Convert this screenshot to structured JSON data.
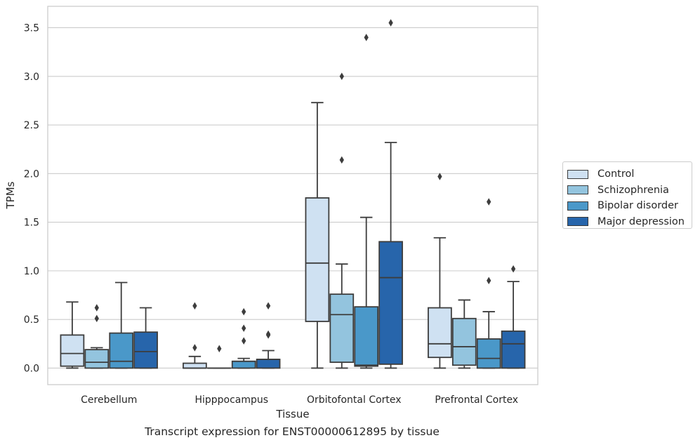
{
  "chart_data": {
    "type": "boxplot",
    "caption": "Transcript expression for ENST00000612895 by tissue",
    "xlabel": "Tissue",
    "ylabel": "TPMs",
    "ylim": [
      -0.17,
      3.72
    ],
    "yticks": [
      0.0,
      0.5,
      1.0,
      1.5,
      2.0,
      2.5,
      3.0,
      3.5
    ],
    "ytick_labels": [
      "0.0",
      "0.5",
      "1.0",
      "1.5",
      "2.0",
      "2.5",
      "3.0",
      "3.5"
    ],
    "grid": "horizontal",
    "legend_position": "right",
    "categories": [
      "Cerebellum",
      "Hipppocampus",
      "Orbitofontal Cortex",
      "Prefrontal Cortex"
    ],
    "series": [
      {
        "name": "Control",
        "color": "#cfe1f2",
        "boxes": [
          {
            "whislo": 0.0,
            "q1": 0.02,
            "med": 0.15,
            "q3": 0.34,
            "whishi": 0.68,
            "fliers": []
          },
          {
            "whislo": 0.0,
            "q1": 0.0,
            "med": 0.0,
            "q3": 0.05,
            "whishi": 0.12,
            "fliers": [
              0.21,
              0.64
            ]
          },
          {
            "whislo": 0.0,
            "q1": 0.48,
            "med": 1.08,
            "q3": 1.75,
            "whishi": 2.73,
            "fliers": []
          },
          {
            "whislo": 0.0,
            "q1": 0.11,
            "med": 0.25,
            "q3": 0.62,
            "whishi": 1.34,
            "fliers": [
              1.97
            ]
          }
        ]
      },
      {
        "name": "Schizophrenia",
        "color": "#93c4de",
        "boxes": [
          {
            "whislo": 0.0,
            "q1": 0.0,
            "med": 0.06,
            "q3": 0.19,
            "whishi": 0.21,
            "fliers": [
              0.51,
              0.62
            ]
          },
          {
            "whislo": 0.0,
            "q1": 0.0,
            "med": 0.0,
            "q3": 0.0,
            "whishi": 0.0,
            "fliers": [
              0.2
            ]
          },
          {
            "whislo": 0.0,
            "q1": 0.06,
            "med": 0.55,
            "q3": 0.76,
            "whishi": 1.07,
            "fliers": [
              2.14,
              3.0
            ]
          },
          {
            "whislo": 0.0,
            "q1": 0.03,
            "med": 0.22,
            "q3": 0.51,
            "whishi": 0.7,
            "fliers": []
          }
        ]
      },
      {
        "name": "Bipolar disorder",
        "color": "#4a98c9",
        "boxes": [
          {
            "whislo": 0.0,
            "q1": 0.0,
            "med": 0.07,
            "q3": 0.36,
            "whishi": 0.88,
            "fliers": []
          },
          {
            "whislo": 0.0,
            "q1": 0.0,
            "med": 0.07,
            "q3": 0.07,
            "whishi": 0.1,
            "fliers": [
              0.28,
              0.41,
              0.58
            ]
          },
          {
            "whislo": 0.0,
            "q1": 0.02,
            "med": 0.03,
            "q3": 0.63,
            "whishi": 1.55,
            "fliers": [
              3.4
            ]
          },
          {
            "whislo": 0.0,
            "q1": 0.0,
            "med": 0.1,
            "q3": 0.3,
            "whishi": 0.58,
            "fliers": [
              0.9,
              1.71
            ]
          }
        ]
      },
      {
        "name": "Major depression",
        "color": "#2765ab",
        "boxes": [
          {
            "whislo": 0.0,
            "q1": 0.0,
            "med": 0.17,
            "q3": 0.37,
            "whishi": 0.62,
            "fliers": []
          },
          {
            "whislo": 0.0,
            "q1": 0.0,
            "med": 0.09,
            "q3": 0.09,
            "whishi": 0.18,
            "fliers": [
              0.34,
              0.35,
              0.64
            ]
          },
          {
            "whislo": 0.0,
            "q1": 0.04,
            "med": 0.93,
            "q3": 1.3,
            "whishi": 2.32,
            "fliers": [
              3.55
            ]
          },
          {
            "whislo": 0.0,
            "q1": 0.0,
            "med": 0.25,
            "q3": 0.38,
            "whishi": 0.89,
            "fliers": [
              1.02
            ]
          }
        ]
      }
    ]
  }
}
